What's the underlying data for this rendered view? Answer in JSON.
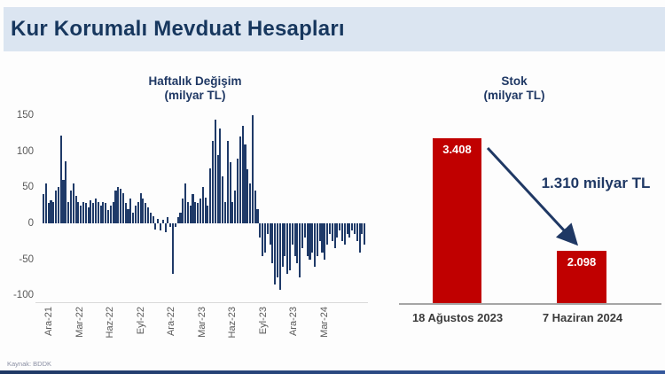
{
  "title": "Kur Korumalı Mevduat Hesapları",
  "source": "Kaynak: BDDK",
  "colors": {
    "navy": "#1f3864",
    "bar_navy": "#1f3a68",
    "red": "#c00000",
    "header_bg": "#dbe5f1",
    "tick_gray": "#595959"
  },
  "chart_data": [
    {
      "type": "bar",
      "title": "Haftalık Değişim",
      "subtitle": "(milyar TL)",
      "ylabel": "milyar TL",
      "ylim": [
        -100,
        160
      ],
      "y_ticks": [
        150,
        100,
        50,
        0,
        -50,
        -100
      ],
      "x_tick_labels": [
        "Ara-21",
        "Mar-22",
        "Haz-22",
        "Eyl-22",
        "Ara-22",
        "Mar-23",
        "Haz-23",
        "Eyl-23",
        "Ara-23",
        "Mar-24"
      ],
      "legend": "none",
      "grid": "off",
      "values": [
        40,
        55,
        28,
        32,
        30,
        45,
        50,
        122,
        60,
        86,
        30,
        45,
        55,
        38,
        30,
        25,
        30,
        28,
        22,
        32,
        28,
        35,
        30,
        25,
        30,
        28,
        18,
        25,
        30,
        45,
        50,
        48,
        42,
        28,
        20,
        35,
        15,
        25,
        30,
        42,
        35,
        28,
        22,
        15,
        10,
        -8,
        6,
        -10,
        5,
        -12,
        8,
        -5,
        -70,
        -5,
        8,
        15,
        35,
        55,
        30,
        25,
        40,
        30,
        28,
        35,
        50,
        36,
        25,
        76,
        115,
        144,
        95,
        132,
        65,
        30,
        115,
        85,
        30,
        45,
        90,
        120,
        135,
        110,
        75,
        55,
        150,
        45,
        20,
        -20,
        -45,
        -40,
        -15,
        -30,
        -55,
        -85,
        -75,
        -92,
        -60,
        -45,
        -70,
        -65,
        -30,
        -45,
        -55,
        -75,
        -35,
        -20,
        -45,
        -50,
        -40,
        -60,
        -45,
        -25,
        -40,
        -50,
        -30,
        -15,
        -25,
        -35,
        -20,
        -10,
        -25,
        -30,
        -15,
        -20,
        -10,
        -15,
        -25,
        -40,
        -15,
        -30
      ]
    },
    {
      "type": "bar",
      "title": "Stok",
      "subtitle": "(milyar TL)",
      "categories": [
        "18 Ağustos 2023",
        "7 Haziran 2024"
      ],
      "values": [
        3408,
        2098
      ],
      "value_labels": [
        "3.408",
        "2.098"
      ],
      "annotation": "1.310 milyar TL",
      "legend": "none"
    }
  ]
}
